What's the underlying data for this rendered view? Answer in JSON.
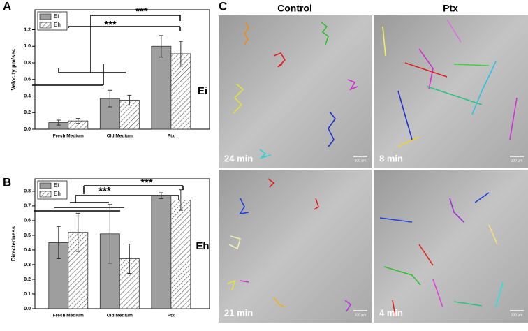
{
  "panel_labels": [
    "A",
    "B",
    "C"
  ],
  "chart_data": [
    {
      "type": "bar",
      "ylabel": "Velocity µm/sec",
      "categories": [
        "Fresh Medium",
        "Old Medium",
        "Ptx"
      ],
      "series": [
        {
          "name": "Ei",
          "color": "#9e9e9e",
          "values": [
            0.08,
            0.37,
            1.0
          ],
          "errors": [
            0.03,
            0.1,
            0.13
          ]
        },
        {
          "name": "Eh",
          "color": "#ffffff",
          "pattern": "hatch",
          "values": [
            0.1,
            0.35,
            0.91
          ],
          "errors": [
            0.03,
            0.06,
            0.15
          ]
        }
      ],
      "ylim": [
        0,
        1.44
      ],
      "yticks": [
        {
          "value": 0,
          "label": "0.0"
        },
        0.2,
        0.4,
        0.6,
        0.8,
        {
          "value": 1,
          "label": "1.0"
        },
        1.2
      ],
      "annotations": [
        "***",
        "***"
      ],
      "legend": "upper left"
    },
    {
      "type": "bar",
      "ylabel": "Directedness",
      "categories": [
        "Fresh Medium",
        "Old Medium",
        "Ptx"
      ],
      "series": [
        {
          "name": "Ei",
          "color": "#9e9e9e",
          "values": [
            0.45,
            0.51,
            0.77
          ],
          "errors": [
            0.11,
            0.2,
            0.02
          ]
        },
        {
          "name": "Eh",
          "color": "#ffffff",
          "pattern": "hatch",
          "values": [
            0.52,
            0.34,
            0.74
          ],
          "errors": [
            0.13,
            0.1,
            0.07
          ]
        }
      ],
      "ylim": [
        0,
        0.885
      ],
      "yticks": [
        {
          "value": 0,
          "label": "0.0"
        },
        0.1,
        0.2,
        0.3,
        0.4,
        0.5,
        0.6,
        0.7,
        0.8
      ],
      "annotations": [
        "***",
        "***"
      ],
      "legend": "upper left"
    }
  ],
  "image_panel": {
    "columns": [
      "Control",
      "Ptx"
    ],
    "rows": [
      "Ei",
      "Eh"
    ],
    "time_labels": [
      "24 min",
      "8 min",
      "21 min",
      "4 min"
    ],
    "scale_bar": "100 µm"
  }
}
